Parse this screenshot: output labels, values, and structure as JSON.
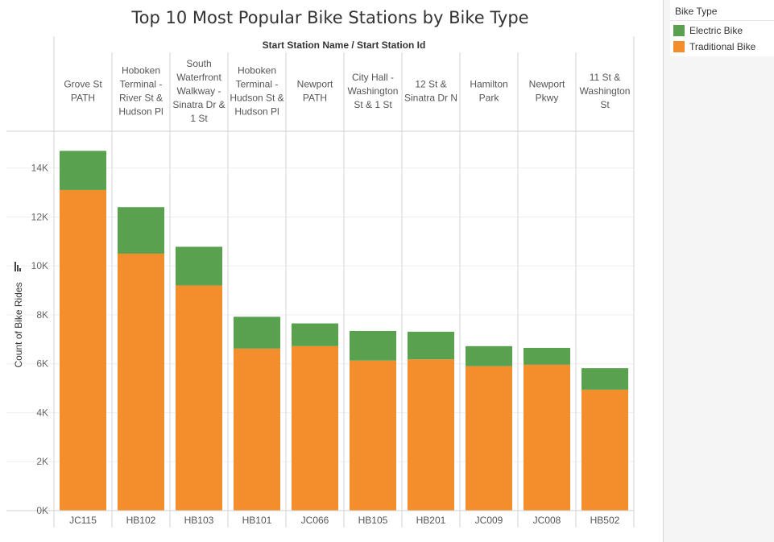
{
  "chart_data": {
    "type": "bar",
    "stacked": true,
    "title": "Top 10 Most Popular Bike Stations by Bike Type",
    "column_header": "Start Station Name  /  Start Station Id",
    "ylabel": "Count of Bike Rides",
    "ylim": [
      0,
      15500
    ],
    "yticks": [
      0,
      2000,
      4000,
      6000,
      8000,
      10000,
      12000,
      14000
    ],
    "ytick_labels": [
      "0K",
      "2K",
      "4K",
      "6K",
      "8K",
      "10K",
      "12K",
      "14K"
    ],
    "categories": [
      {
        "name_lines": [
          "Grove St",
          "PATH"
        ],
        "id": "JC115"
      },
      {
        "name_lines": [
          "Hoboken",
          "Terminal -",
          "River St &",
          "Hudson Pl"
        ],
        "id": "HB102"
      },
      {
        "name_lines": [
          "South",
          "Waterfront",
          "Walkway -",
          "Sinatra Dr &",
          "1 St"
        ],
        "id": "HB103"
      },
      {
        "name_lines": [
          "Hoboken",
          "Terminal -",
          "Hudson St &",
          "Hudson Pl"
        ],
        "id": "HB101"
      },
      {
        "name_lines": [
          "Newport",
          "PATH"
        ],
        "id": "JC066"
      },
      {
        "name_lines": [
          "City Hall -",
          "Washington",
          "St & 1 St"
        ],
        "id": "HB105"
      },
      {
        "name_lines": [
          "12 St &",
          "Sinatra Dr N"
        ],
        "id": "HB201"
      },
      {
        "name_lines": [
          "Hamilton",
          "Park"
        ],
        "id": "JC009"
      },
      {
        "name_lines": [
          "Newport",
          "Pkwy"
        ],
        "id": "JC008"
      },
      {
        "name_lines": [
          "11 St &",
          "Washington",
          "St"
        ],
        "id": "HB502"
      }
    ],
    "series": [
      {
        "name": "Traditional Bike",
        "color": "#f28e2b",
        "values": [
          13100,
          10500,
          9200,
          6620,
          6720,
          6130,
          6180,
          5900,
          5960,
          4940
        ]
      },
      {
        "name": "Electric Bike",
        "color": "#59a14f",
        "values": [
          1600,
          1900,
          1580,
          1300,
          930,
          1210,
          1130,
          820,
          690,
          880
        ]
      }
    ],
    "legend": {
      "title": "Bike Type",
      "placement": "right"
    },
    "grid": true
  }
}
